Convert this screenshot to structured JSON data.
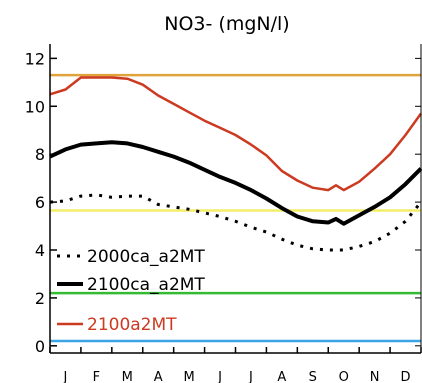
{
  "chart_data": {
    "type": "line",
    "title": "NO3-  (mgN/l)",
    "xlabel": "",
    "ylabel": "",
    "x_categories": [
      "J",
      "F",
      "M",
      "A",
      "M",
      "J",
      "J",
      "A",
      "S",
      "O",
      "N",
      "D"
    ],
    "xlim": [
      0,
      12
    ],
    "ylim": [
      -0.3,
      12.6
    ],
    "y_ticks": [
      0,
      2,
      4,
      6,
      8,
      10,
      12
    ],
    "grid": false,
    "legend_position": "lower-left",
    "series": [
      {
        "name": "2000ca_a2MT",
        "color": "#000000",
        "style": "dotted",
        "x": [
          0.0,
          0.5,
          1.0,
          1.5,
          2.0,
          2.5,
          3.0,
          3.5,
          4.0,
          4.5,
          5.0,
          5.5,
          6.0,
          6.5,
          7.0,
          7.5,
          8.0,
          8.5,
          9.0,
          9.5,
          10.0,
          10.5,
          11.0,
          11.5,
          12.0
        ],
        "values": [
          6.0,
          6.05,
          6.25,
          6.3,
          6.2,
          6.25,
          6.25,
          5.9,
          5.8,
          5.7,
          5.55,
          5.4,
          5.2,
          4.95,
          4.75,
          4.45,
          4.2,
          4.05,
          4.0,
          4.0,
          4.15,
          4.35,
          4.7,
          5.2,
          6.0
        ]
      },
      {
        "name": "2100ca_a2MT",
        "color": "#000000",
        "style": "solid",
        "x": [
          0.0,
          0.5,
          1.0,
          1.5,
          2.0,
          2.5,
          3.0,
          3.5,
          4.0,
          4.5,
          5.0,
          5.5,
          6.0,
          6.5,
          7.0,
          7.5,
          8.0,
          8.5,
          9.0,
          9.25,
          9.5,
          10.0,
          10.5,
          11.0,
          11.5,
          12.0
        ],
        "values": [
          7.9,
          8.2,
          8.4,
          8.45,
          8.5,
          8.45,
          8.3,
          8.1,
          7.9,
          7.65,
          7.35,
          7.05,
          6.8,
          6.5,
          6.15,
          5.75,
          5.4,
          5.2,
          5.15,
          5.3,
          5.1,
          5.45,
          5.8,
          6.2,
          6.75,
          7.4
        ]
      },
      {
        "name": "2100a2MT",
        "color": "#cc3a21",
        "style": "solid",
        "x": [
          0.0,
          0.5,
          1.0,
          1.5,
          2.0,
          2.5,
          3.0,
          3.5,
          4.0,
          4.5,
          5.0,
          5.5,
          6.0,
          6.5,
          7.0,
          7.5,
          8.0,
          8.5,
          9.0,
          9.25,
          9.5,
          10.0,
          10.5,
          11.0,
          11.5,
          12.0
        ],
        "values": [
          10.5,
          10.7,
          11.2,
          11.2,
          11.2,
          11.15,
          10.9,
          10.45,
          10.1,
          9.75,
          9.4,
          9.1,
          8.8,
          8.4,
          7.95,
          7.3,
          6.9,
          6.6,
          6.5,
          6.7,
          6.5,
          6.85,
          7.4,
          8.0,
          8.8,
          9.7
        ]
      }
    ],
    "reference_lines": [
      {
        "y": 11.3,
        "color": "#e0a23a"
      },
      {
        "y": 5.65,
        "color": "#f2ee6a"
      },
      {
        "y": 2.2,
        "color": "#33bb33"
      },
      {
        "y": 0.2,
        "color": "#3aa6e6"
      }
    ]
  }
}
